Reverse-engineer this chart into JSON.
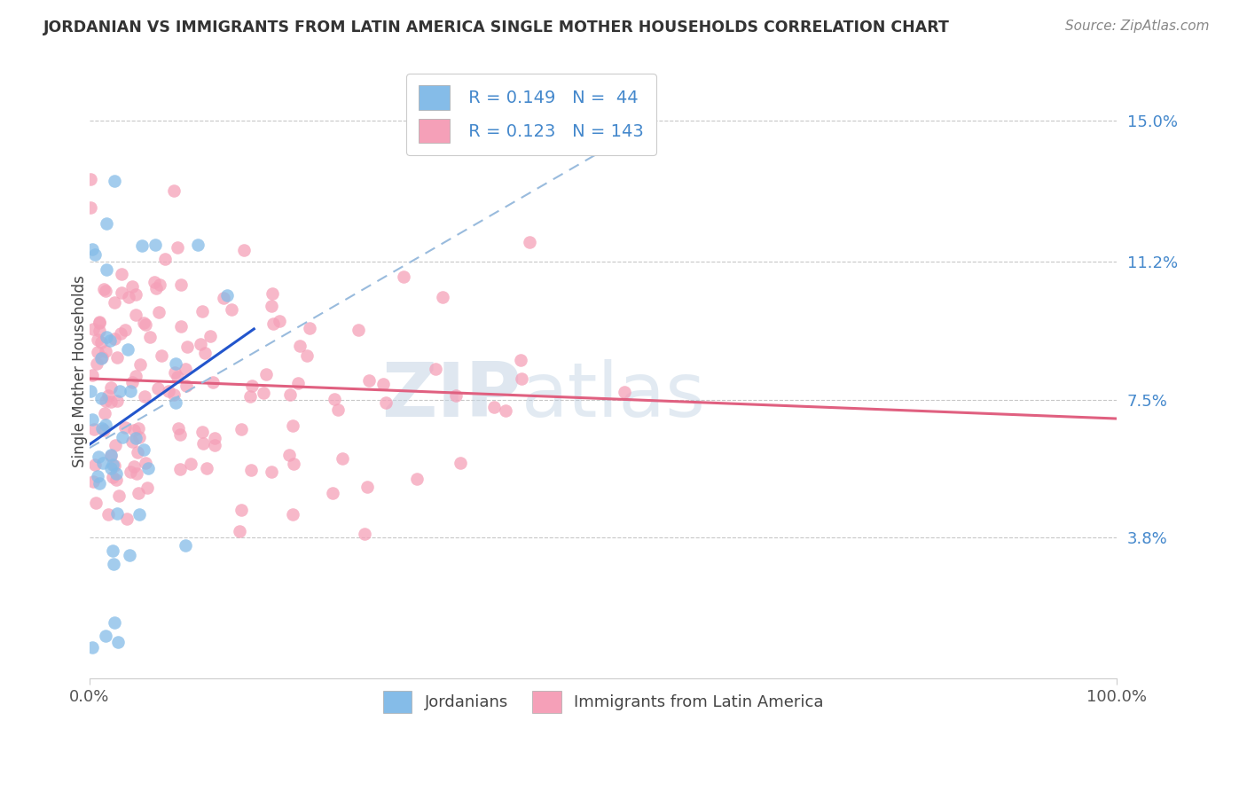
{
  "title": "JORDANIAN VS IMMIGRANTS FROM LATIN AMERICA SINGLE MOTHER HOUSEHOLDS CORRELATION CHART",
  "source": "Source: ZipAtlas.com",
  "ylabel": "Single Mother Households",
  "xlim": [
    0,
    1.0
  ],
  "ylim": [
    0,
    0.165
  ],
  "yticks": [
    0.038,
    0.075,
    0.112,
    0.15
  ],
  "ytick_labels": [
    "3.8%",
    "7.5%",
    "11.2%",
    "15.0%"
  ],
  "xtick_labels": [
    "0.0%",
    "100.0%"
  ],
  "background_color": "#ffffff",
  "grid_color": "#c8c8c8",
  "blue_color": "#85bce8",
  "pink_color": "#f5a0b8",
  "blue_solid_line_color": "#2255cc",
  "pink_line_color": "#e06080",
  "dashed_line_color": "#99bbdd",
  "legend_R1": "R = 0.149",
  "legend_N1": "N =  44",
  "legend_R2": "R = 0.123",
  "legend_N2": "N = 143",
  "watermark_zip": "ZIP",
  "watermark_atlas": "atlas",
  "legend_text_color": "#4488cc"
}
